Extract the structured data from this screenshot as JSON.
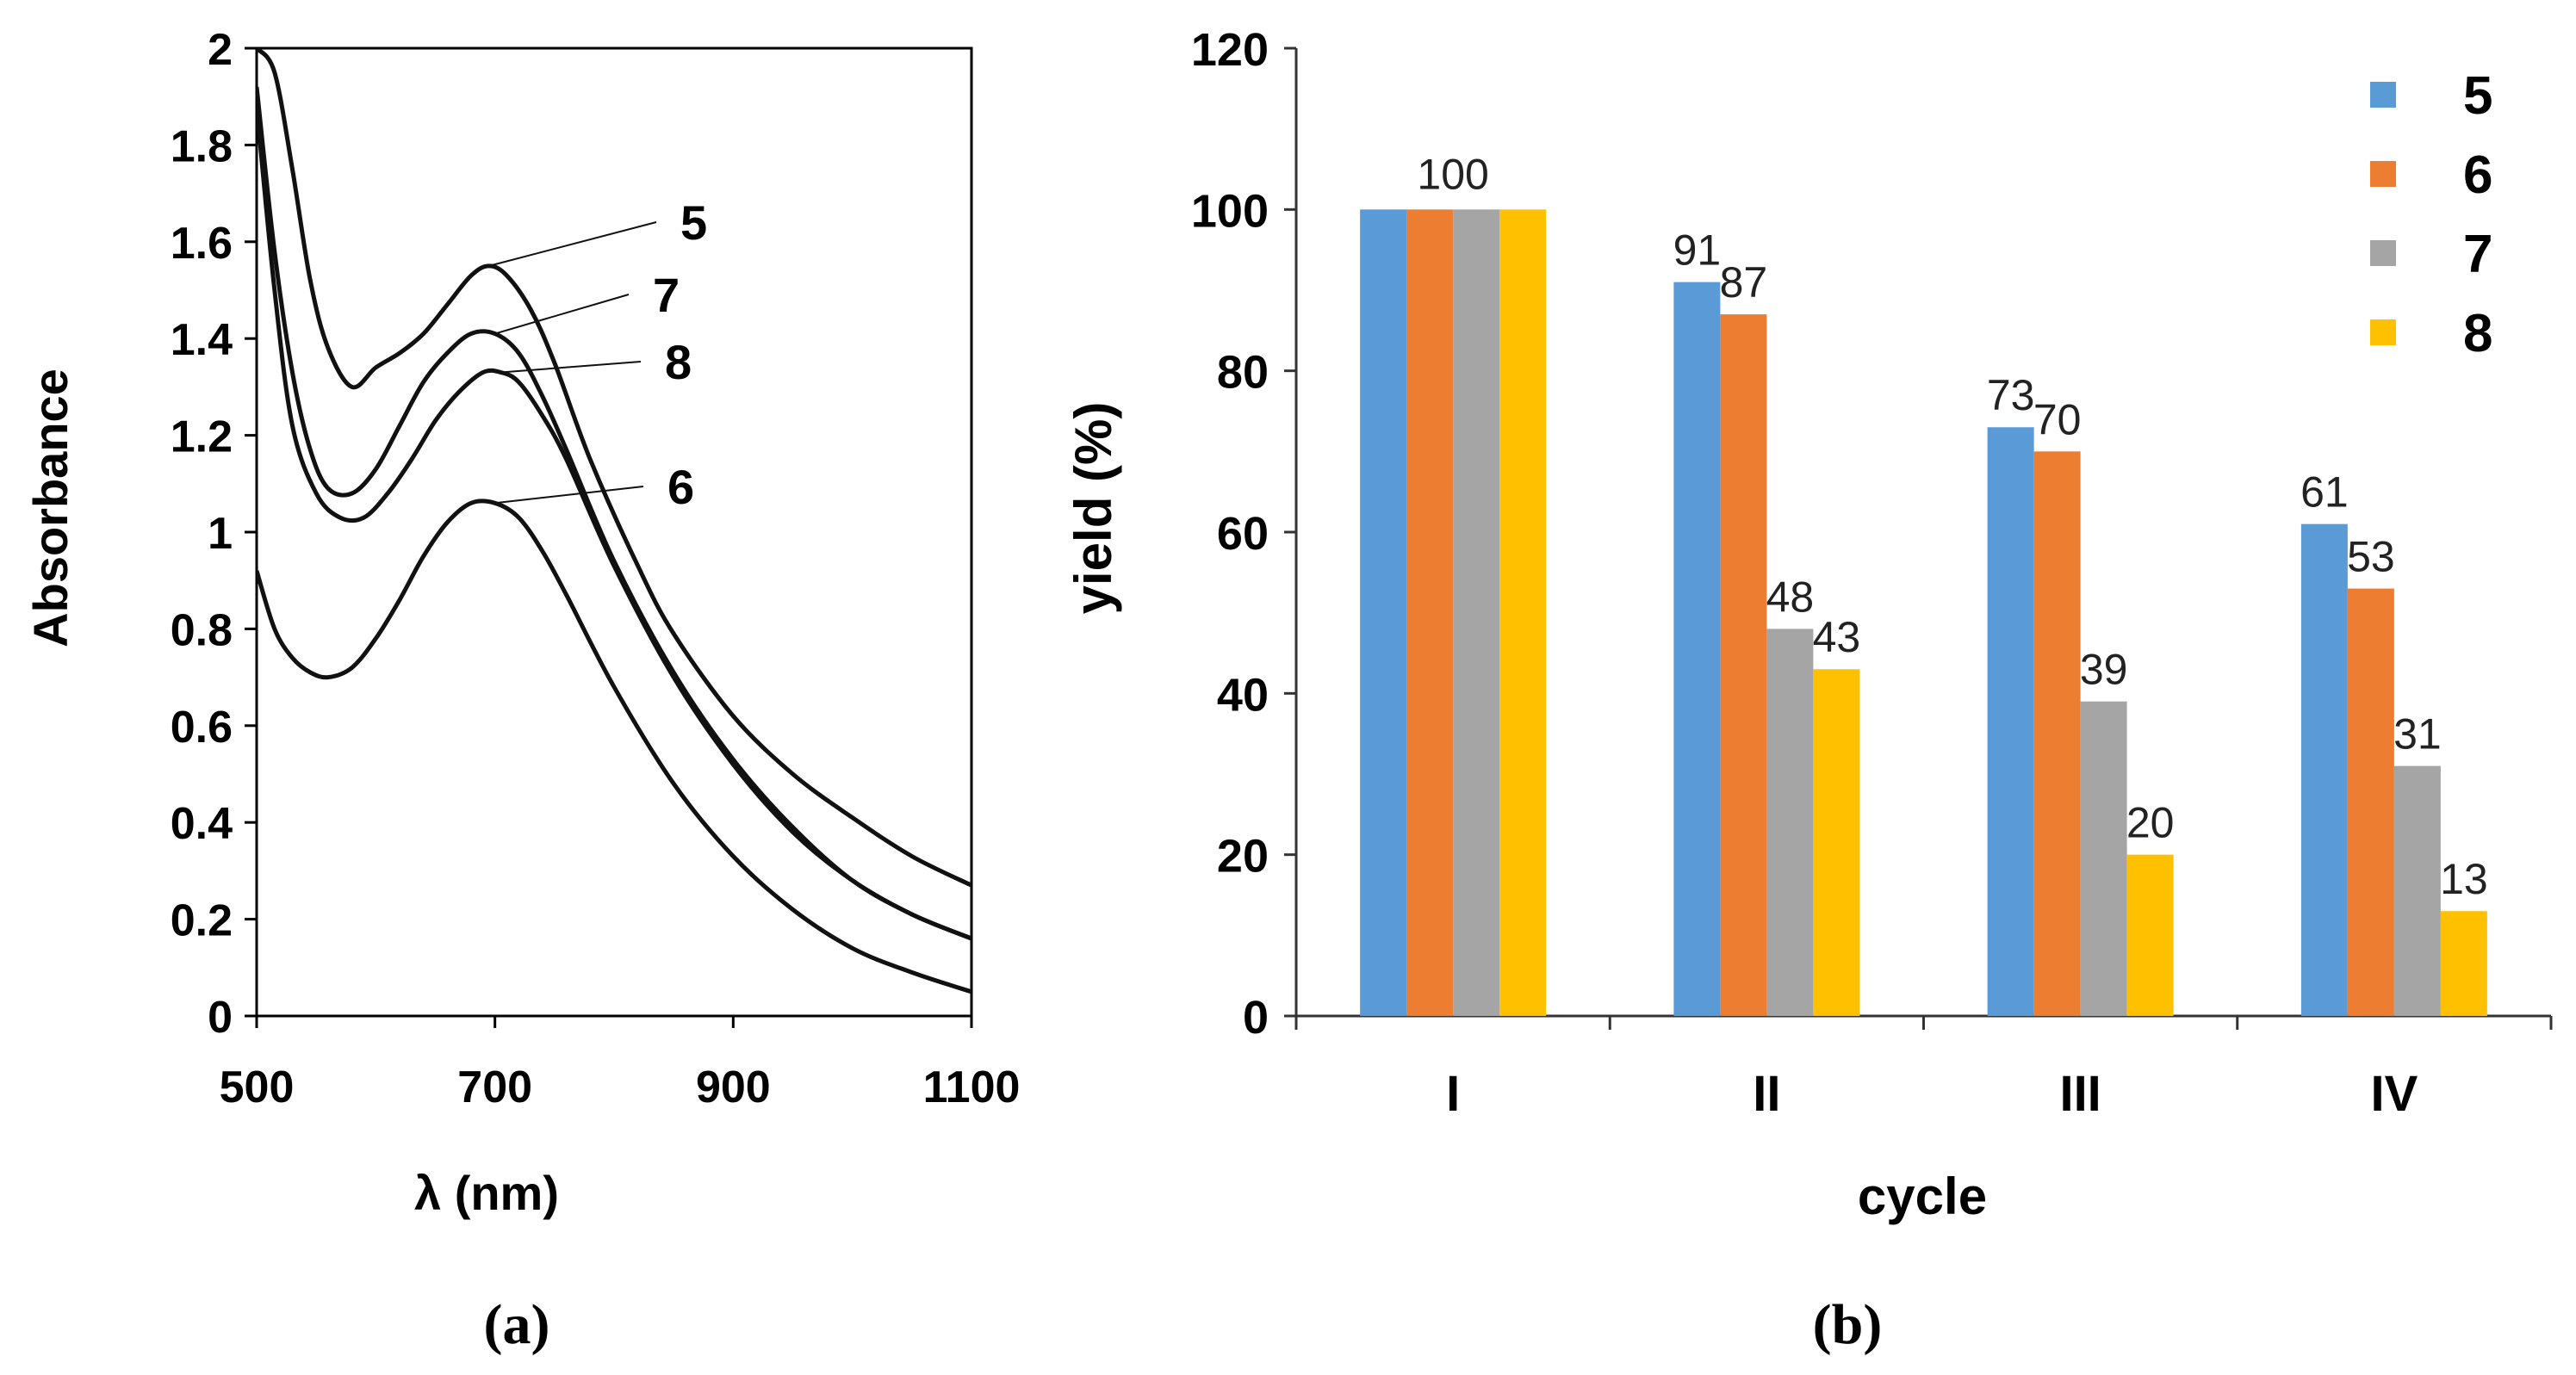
{
  "chart_data": [
    {
      "type": "line",
      "panel": "(a)",
      "panel_label": "(a)",
      "title": "",
      "xlabel": "λ (nm)",
      "ylabel": "Absorbance",
      "xlim": [
        500,
        1100
      ],
      "ylim": [
        0,
        2
      ],
      "xticks": [
        500,
        700,
        900,
        1100
      ],
      "yticks": [
        0,
        0.2,
        0.4,
        0.6,
        0.8,
        1,
        1.2,
        1.4,
        1.6,
        1.8,
        2
      ],
      "xtick_labels": [
        "500",
        "700",
        "900",
        "1100"
      ],
      "ytick_labels": [
        "0",
        "0.2",
        "0.4",
        "0.6",
        "0.8",
        "1",
        "1.2",
        "1.4",
        "1.6",
        "1.8",
        "2"
      ],
      "grid": false,
      "series": [
        {
          "name": "5",
          "x": [
            500,
            515,
            530,
            545,
            560,
            580,
            600,
            620,
            640,
            660,
            680,
            695,
            710,
            730,
            750,
            780,
            820,
            850,
            900,
            950,
            1000,
            1050,
            1100
          ],
          "y": [
            2.0,
            1.95,
            1.75,
            1.52,
            1.38,
            1.3,
            1.34,
            1.37,
            1.41,
            1.47,
            1.53,
            1.55,
            1.53,
            1.46,
            1.35,
            1.15,
            0.93,
            0.79,
            0.62,
            0.5,
            0.41,
            0.33,
            0.27
          ],
          "label_anchor_x": 695,
          "label_anchor_y": 1.55
        },
        {
          "name": "7",
          "x": [
            500,
            515,
            530,
            545,
            560,
            580,
            600,
            620,
            640,
            660,
            680,
            700,
            720,
            740,
            760,
            800,
            850,
            900,
            950,
            1000,
            1050,
            1100
          ],
          "y": [
            1.92,
            1.58,
            1.33,
            1.17,
            1.09,
            1.08,
            1.13,
            1.22,
            1.31,
            1.37,
            1.41,
            1.41,
            1.37,
            1.28,
            1.17,
            0.94,
            0.71,
            0.53,
            0.39,
            0.28,
            0.21,
            0.16
          ],
          "label_anchor_x": 700,
          "label_anchor_y": 1.41
        },
        {
          "name": "8",
          "x": [
            500,
            515,
            530,
            550,
            570,
            590,
            610,
            630,
            650,
            670,
            690,
            705,
            720,
            740,
            760,
            800,
            850,
            900,
            950,
            1000,
            1050,
            1100
          ],
          "y": [
            1.88,
            1.5,
            1.22,
            1.08,
            1.03,
            1.03,
            1.08,
            1.15,
            1.23,
            1.29,
            1.33,
            1.33,
            1.31,
            1.24,
            1.15,
            0.93,
            0.7,
            0.52,
            0.38,
            0.28,
            0.21,
            0.16
          ],
          "label_anchor_x": 705,
          "label_anchor_y": 1.33
        },
        {
          "name": "6",
          "x": [
            500,
            515,
            530,
            545,
            560,
            580,
            600,
            620,
            640,
            660,
            680,
            700,
            720,
            740,
            760,
            800,
            850,
            900,
            950,
            1000,
            1050,
            1100
          ],
          "y": [
            0.92,
            0.8,
            0.74,
            0.71,
            0.7,
            0.72,
            0.78,
            0.86,
            0.95,
            1.02,
            1.06,
            1.06,
            1.03,
            0.96,
            0.87,
            0.68,
            0.48,
            0.33,
            0.22,
            0.14,
            0.09,
            0.05
          ],
          "label_anchor_x": 700,
          "label_anchor_y": 1.06
        }
      ],
      "annotations": [
        {
          "text": "5",
          "series": "5"
        },
        {
          "text": "7",
          "series": "7"
        },
        {
          "text": "8",
          "series": "8"
        },
        {
          "text": "6",
          "series": "6"
        }
      ]
    },
    {
      "type": "bar",
      "panel": "(b)",
      "panel_label": "(b)",
      "title": "",
      "xlabel": "cycle",
      "ylabel": "yield (%)",
      "ylim": [
        0,
        120
      ],
      "yticks": [
        0,
        20,
        40,
        60,
        80,
        100,
        120
      ],
      "ytick_labels": [
        "0",
        "20",
        "40",
        "60",
        "80",
        "100",
        "120"
      ],
      "grid": false,
      "legend_position": "top-right",
      "categories": [
        "I",
        "II",
        "III",
        "IV"
      ],
      "series": [
        {
          "name": "5",
          "color": "#5B9BD5",
          "values": [
            100,
            91,
            73,
            61
          ],
          "labels": [
            "",
            "91",
            "73",
            "61"
          ]
        },
        {
          "name": "6",
          "color": "#ED7D31",
          "values": [
            100,
            87,
            70,
            53
          ],
          "labels": [
            "100",
            "87",
            "70",
            "53"
          ]
        },
        {
          "name": "7",
          "color": "#A5A5A5",
          "values": [
            100,
            48,
            39,
            31
          ],
          "labels": [
            "",
            "48",
            "39",
            "31"
          ]
        },
        {
          "name": "8",
          "color": "#FFC000",
          "values": [
            100,
            43,
            20,
            13
          ],
          "labels": [
            "",
            "43",
            "20",
            "13"
          ]
        }
      ]
    }
  ]
}
